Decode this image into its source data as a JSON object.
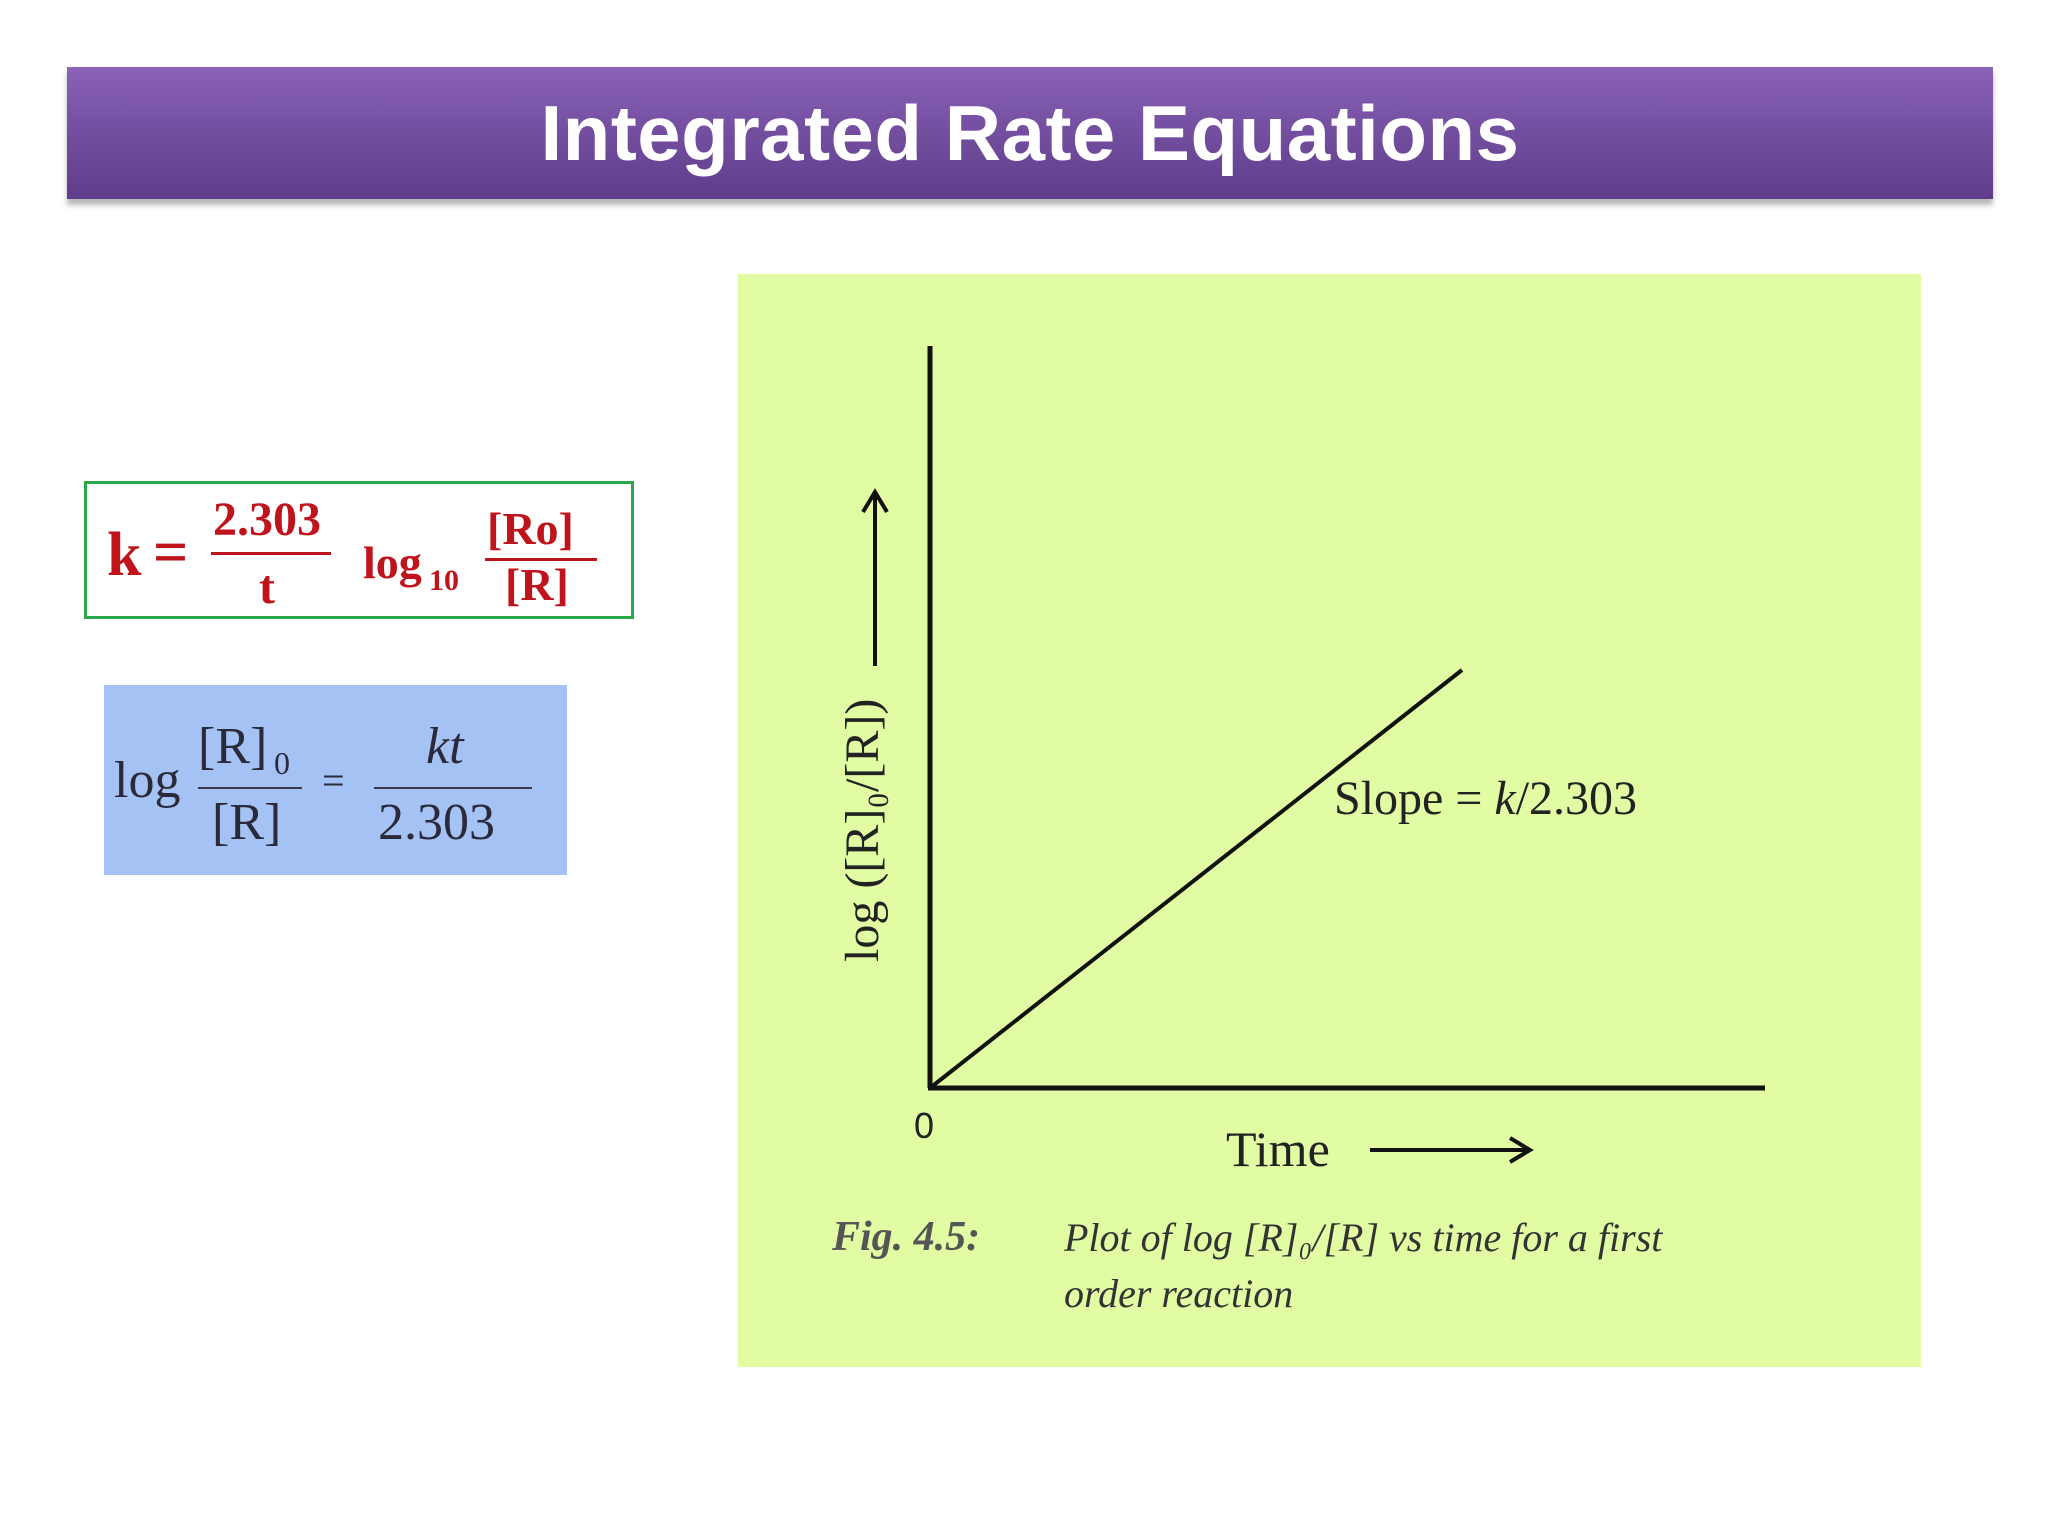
{
  "slide": {
    "title": "Integrated Rate Equations"
  },
  "formula_k": {
    "k": "k",
    "equals": "=",
    "numerator": "2.303",
    "denominator": "t",
    "log": "log",
    "log_base": "10",
    "ratio_num": "[Ro]",
    "ratio_den": "[R]",
    "color": "#c0141c",
    "border_color": "#2aa84a"
  },
  "formula_log": {
    "log": "log",
    "num_left": "[R]",
    "num_left_sub": "0",
    "den_left": "[R]",
    "equals": "=",
    "num_right": "kt",
    "den_right": "2.303",
    "background": "#a4c2f4"
  },
  "figure": {
    "background": "#e1fca2",
    "y_axis_label": "log ([R]₀/[R])",
    "x_axis_label": "Time",
    "origin_label": "0",
    "slope_label_prefix": "Slope = ",
    "slope_label_k": "k",
    "slope_label_suffix": "/2.303",
    "caption_label": "Fig. 4.5:",
    "caption_line1": "Plot of log [R]₀/[R] vs time for a first",
    "caption_line2": "order reaction"
  },
  "chart_data": {
    "type": "line",
    "xlabel": "Time",
    "ylabel": "log ([R]₀/[R])",
    "annotations": [
      "Slope = k/2.303"
    ],
    "series": [
      {
        "x": [
          0,
          1
        ],
        "y": [
          0,
          1
        ]
      }
    ],
    "grid": false
  }
}
